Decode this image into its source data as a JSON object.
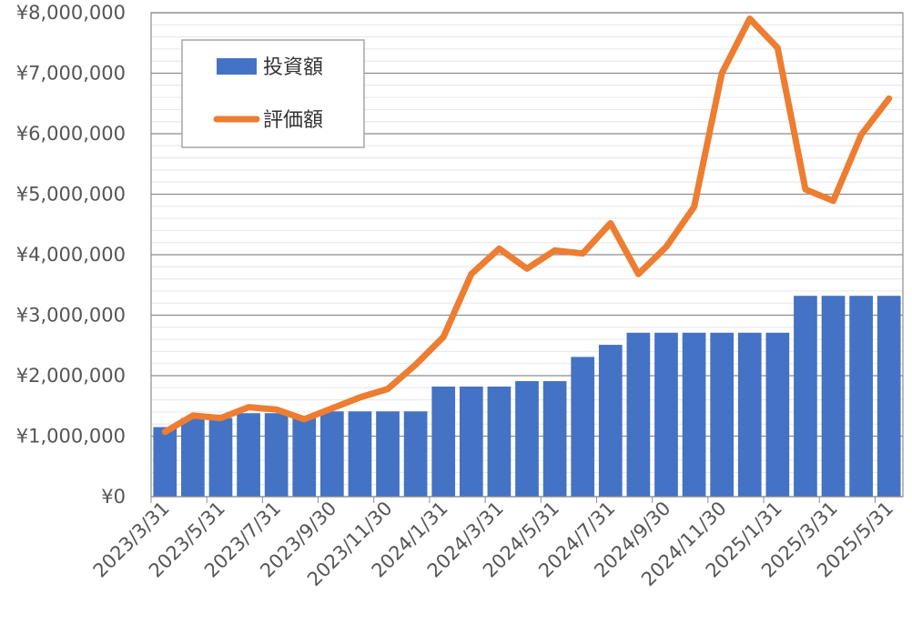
{
  "chart_data": {
    "type": "bar+line",
    "x": [
      "2023/3/31",
      "2023/4/30",
      "2023/5/31",
      "2023/6/30",
      "2023/7/31",
      "2023/8/31",
      "2023/9/30",
      "2023/10/31",
      "2023/11/30",
      "2023/12/31",
      "2024/1/31",
      "2024/2/29",
      "2024/3/31",
      "2024/4/30",
      "2024/5/31",
      "2024/6/30",
      "2024/7/31",
      "2024/8/31",
      "2024/9/30",
      "2024/10/31",
      "2024/11/30",
      "2024/12/31",
      "2025/1/31",
      "2025/2/28",
      "2025/3/31",
      "2025/4/30",
      "2025/5/31"
    ],
    "x_tick_labels": [
      "2023/3/31",
      "2023/5/31",
      "2023/7/31",
      "2023/9/30",
      "2023/11/30",
      "2024/1/31",
      "2024/3/31",
      "2024/5/31",
      "2024/7/31",
      "2024/9/30",
      "2024/11/30",
      "2025/1/31",
      "2025/3/31",
      "2025/5/31"
    ],
    "series": [
      {
        "name": "投資額",
        "kind": "bar",
        "color": "#4472c4",
        "values": [
          1150000,
          1300000,
          1300000,
          1380000,
          1380000,
          1330000,
          1410000,
          1410000,
          1410000,
          1410000,
          1820000,
          1820000,
          1820000,
          1910000,
          1910000,
          2310000,
          2510000,
          2710000,
          2710000,
          2710000,
          2710000,
          2710000,
          2710000,
          3320000,
          3320000,
          3320000,
          3320000
        ]
      },
      {
        "name": "評価額",
        "kind": "line",
        "color": "#ed7d31",
        "values": [
          1070000,
          1340000,
          1300000,
          1480000,
          1440000,
          1280000,
          1460000,
          1640000,
          1780000,
          2180000,
          2640000,
          3680000,
          4100000,
          3770000,
          4070000,
          4020000,
          4520000,
          3680000,
          4130000,
          4790000,
          7000000,
          7900000,
          7420000,
          5080000,
          4890000,
          5980000,
          6580000
        ]
      }
    ],
    "y_tick_labels": [
      "¥0",
      "¥1,000,000",
      "¥2,000,000",
      "¥3,000,000",
      "¥4,000,000",
      "¥5,000,000",
      "¥6,000,000",
      "¥7,000,000",
      "¥8,000,000"
    ],
    "ylim": [
      0,
      8000000
    ],
    "grid": true,
    "minor_grid": true,
    "legend_position": "top-left"
  }
}
